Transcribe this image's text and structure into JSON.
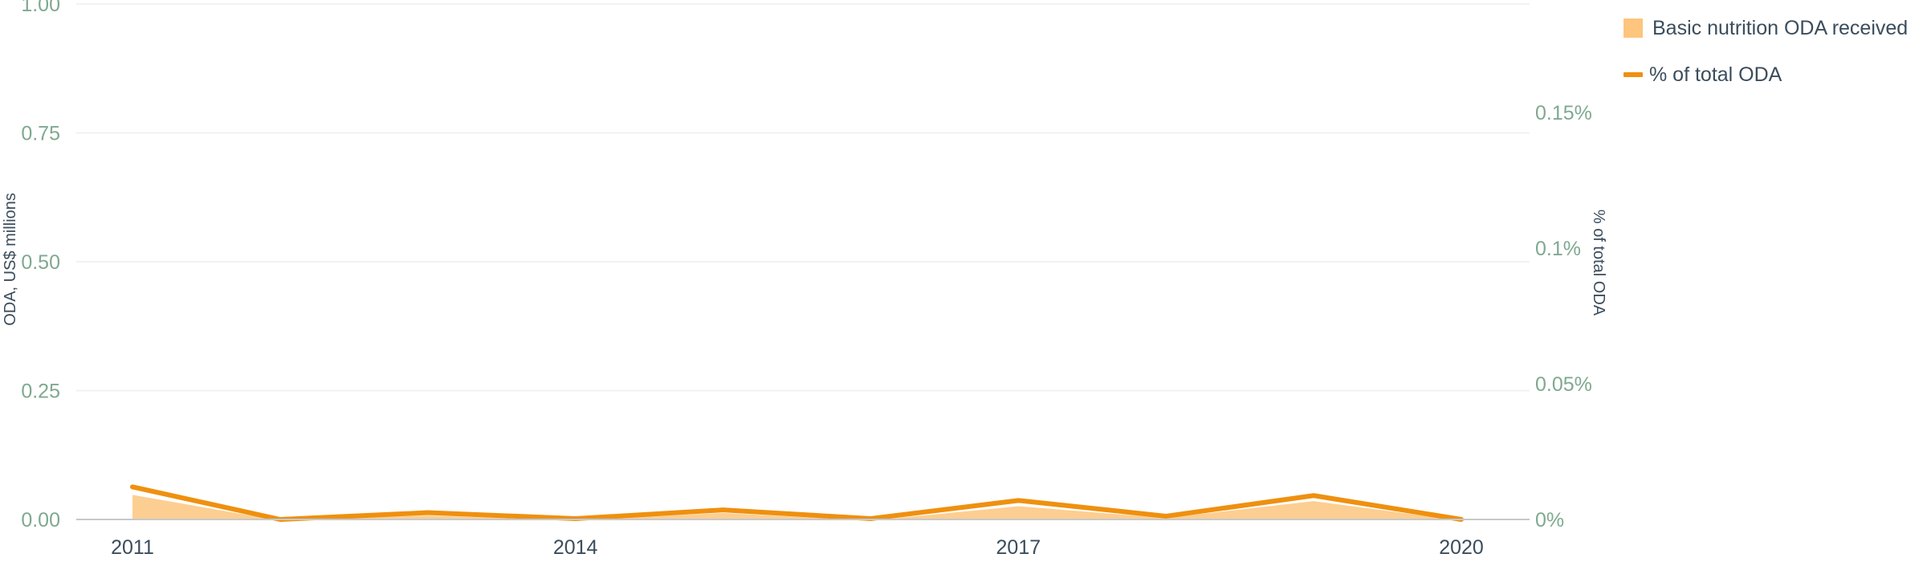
{
  "chart_data": {
    "type": "area",
    "x": [
      2011,
      2012,
      2013,
      2014,
      2015,
      2016,
      2017,
      2018,
      2019,
      2020
    ],
    "x_tick_labels": [
      "2011",
      "2014",
      "2017",
      "2020"
    ],
    "xlim": [
      2011,
      2020
    ],
    "series": [
      {
        "name": "Basic nutrition ODA received",
        "type": "area",
        "axis": "left",
        "color": "#fdc57e",
        "values": [
          0.05,
          0.0,
          0.01,
          0.0,
          0.015,
          0.0,
          0.028,
          0.005,
          0.038,
          0.0
        ]
      },
      {
        "name": "% of total ODA",
        "type": "line",
        "axis": "right",
        "color": "#ef900f",
        "values": [
          0.012,
          0.0,
          0.0025,
          0.0003,
          0.0035,
          0.0003,
          0.007,
          0.0012,
          0.0088,
          0.0
        ]
      }
    ],
    "y_left": {
      "label": "ODA, US$ millions",
      "lim": [
        0,
        1
      ],
      "ticks": [
        0,
        0.25,
        0.5,
        0.75,
        1.0
      ],
      "tick_labels": [
        "0.00",
        "0.25",
        "0.50",
        "0.75",
        "1.00"
      ]
    },
    "y_right": {
      "label": "% of total ODA",
      "lim": [
        0,
        0.19
      ],
      "ticks": [
        0,
        0.05,
        0.1,
        0.15
      ],
      "tick_labels": [
        "0%",
        "0.05%",
        "0.1%",
        "0.15%"
      ]
    },
    "grid": true,
    "legend": "top-right"
  }
}
